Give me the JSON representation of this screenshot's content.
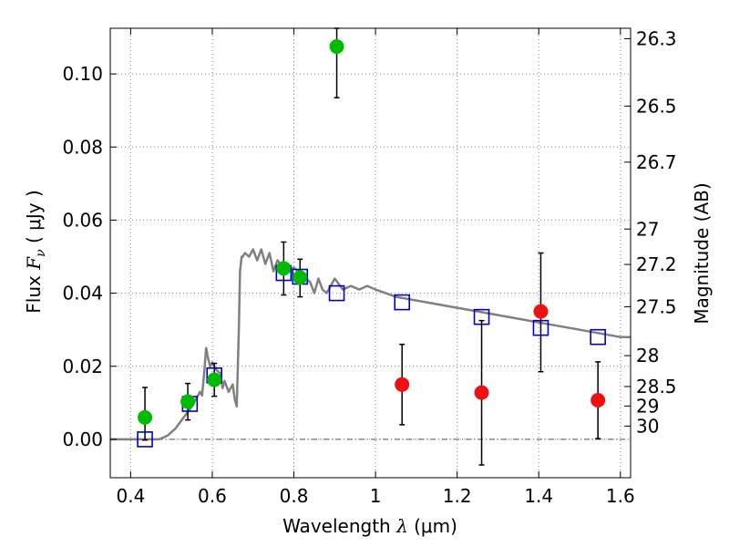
{
  "chart_data": {
    "type": "scatter",
    "xlabel": "Wavelength  λ (μm)",
    "xlabel_parts": {
      "prefix": "Wavelength  ",
      "symbol": "λ",
      "unit": " (μm)"
    },
    "ylabel_parts": {
      "prefix": "Flux  ",
      "symbol": "F",
      "subscript": "ν",
      "unit": "  ( μJy )"
    },
    "y2label": "Magnitude (AB)",
    "xlim": [
      0.35,
      1.625
    ],
    "ylim": [
      -0.0105,
      0.1125
    ],
    "grid": true,
    "x_ticks": [
      {
        "value": 0.4,
        "label": "0.4"
      },
      {
        "value": 0.6,
        "label": "0.6"
      },
      {
        "value": 0.8,
        "label": "0.8"
      },
      {
        "value": 1.0,
        "label": "1"
      },
      {
        "value": 1.2,
        "label": "1.2"
      },
      {
        "value": 1.4,
        "label": "1.4"
      },
      {
        "value": 1.6,
        "label": "1.6"
      }
    ],
    "y_ticks": [
      {
        "value": 0.0,
        "label": "0.00"
      },
      {
        "value": 0.02,
        "label": "0.02"
      },
      {
        "value": 0.04,
        "label": "0.04"
      },
      {
        "value": 0.06,
        "label": "0.06"
      },
      {
        "value": 0.08,
        "label": "0.08"
      },
      {
        "value": 0.1,
        "label": "0.10"
      }
    ],
    "y2_ticks": [
      {
        "mag": 26.3,
        "label": "26.3"
      },
      {
        "mag": 26.5,
        "label": "26.5"
      },
      {
        "mag": 26.7,
        "label": "26.7"
      },
      {
        "mag": 27.0,
        "label": "27"
      },
      {
        "mag": 27.2,
        "label": "27.2"
      },
      {
        "mag": 27.5,
        "label": "27.5"
      },
      {
        "mag": 28.0,
        "label": "28"
      },
      {
        "mag": 28.5,
        "label": "28.5"
      },
      {
        "mag": 29.0,
        "label": "29"
      },
      {
        "mag": 30.0,
        "label": "30"
      }
    ],
    "colors": {
      "model_line": "#808080",
      "model_points": "#0000cc",
      "hst_points": "#00bb00",
      "ir_points": "#ee1111",
      "errorbar": "#000000",
      "grid": "#888888"
    },
    "model_spectrum": {
      "name": "model SED",
      "x": [
        0.35,
        0.47,
        0.49,
        0.51,
        0.53,
        0.55,
        0.56,
        0.57,
        0.575,
        0.58,
        0.585,
        0.59,
        0.595,
        0.6,
        0.61,
        0.62,
        0.625,
        0.63,
        0.64,
        0.65,
        0.655,
        0.66,
        0.665,
        0.668,
        0.672,
        0.675,
        0.68,
        0.69,
        0.7,
        0.71,
        0.72,
        0.73,
        0.74,
        0.75,
        0.76,
        0.78,
        0.8,
        0.82,
        0.84,
        0.85,
        0.86,
        0.87,
        0.88,
        0.9,
        0.92,
        0.94,
        0.96,
        0.98,
        1.0,
        1.05,
        1.1,
        1.15,
        1.2,
        1.25,
        1.3,
        1.35,
        1.4,
        1.45,
        1.5,
        1.55,
        1.6,
        1.625
      ],
      "y": [
        0.0,
        0.0,
        0.001,
        0.003,
        0.006,
        0.009,
        0.011,
        0.013,
        0.012,
        0.018,
        0.025,
        0.022,
        0.02,
        0.021,
        0.019,
        0.018,
        0.014,
        0.016,
        0.013,
        0.015,
        0.011,
        0.009,
        0.03,
        0.046,
        0.05,
        0.05,
        0.051,
        0.05,
        0.052,
        0.049,
        0.052,
        0.048,
        0.051,
        0.046,
        0.049,
        0.046,
        0.047,
        0.045,
        0.043,
        0.04,
        0.044,
        0.041,
        0.04,
        0.044,
        0.041,
        0.042,
        0.041,
        0.042,
        0.041,
        0.039,
        0.038,
        0.037,
        0.036,
        0.035,
        0.034,
        0.033,
        0.032,
        0.031,
        0.03,
        0.029,
        0.028,
        0.028
      ]
    },
    "series": [
      {
        "name": "model photometry",
        "marker": "square",
        "points": [
          {
            "x": 0.435,
            "y": 0.0
          },
          {
            "x": 0.545,
            "y": 0.0097
          },
          {
            "x": 0.605,
            "y": 0.0175
          },
          {
            "x": 0.775,
            "y": 0.0455
          },
          {
            "x": 0.815,
            "y": 0.0445
          },
          {
            "x": 0.905,
            "y": 0.04
          },
          {
            "x": 1.065,
            "y": 0.0375
          },
          {
            "x": 1.26,
            "y": 0.0335
          },
          {
            "x": 1.405,
            "y": 0.0305
          },
          {
            "x": 1.545,
            "y": 0.028
          }
        ]
      },
      {
        "name": "HST optical photometry",
        "marker": "circle",
        "points": [
          {
            "x": 0.435,
            "y": 0.006,
            "lo": -0.0002,
            "hi": 0.0142
          },
          {
            "x": 0.54,
            "y": 0.0103,
            "lo": 0.0053,
            "hi": 0.0153
          },
          {
            "x": 0.605,
            "y": 0.0163,
            "lo": 0.0118,
            "hi": 0.0208
          },
          {
            "x": 0.775,
            "y": 0.0468,
            "lo": 0.0395,
            "hi": 0.054
          },
          {
            "x": 0.815,
            "y": 0.0443,
            "lo": 0.039,
            "hi": 0.0493
          },
          {
            "x": 0.905,
            "y": 0.1075,
            "lo": 0.0935,
            "hi": 0.1125
          }
        ]
      },
      {
        "name": "HST near-IR photometry",
        "marker": "circle",
        "points": [
          {
            "x": 1.065,
            "y": 0.015,
            "lo": 0.004,
            "hi": 0.026
          },
          {
            "x": 1.26,
            "y": 0.0128,
            "lo": -0.007,
            "hi": 0.0325
          },
          {
            "x": 1.405,
            "y": 0.035,
            "lo": 0.0185,
            "hi": 0.051
          },
          {
            "x": 1.545,
            "y": 0.0107,
            "lo": 0.0002,
            "hi": 0.0212
          }
        ]
      }
    ]
  }
}
